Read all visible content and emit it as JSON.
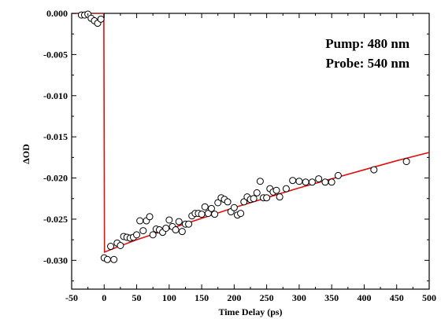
{
  "chart_data": {
    "type": "scatter",
    "title": "",
    "xlabel": "Time Delay (ps)",
    "ylabel": "ΔOD",
    "xlim": [
      -50,
      500
    ],
    "ylim": [
      -0.0335,
      0.0
    ],
    "xticks": [
      -50,
      0,
      50,
      100,
      150,
      200,
      250,
      300,
      350,
      400,
      450,
      500
    ],
    "xtick_labels": [
      "-50",
      "0",
      "50",
      "100",
      "150",
      "200",
      "250",
      "300",
      "350",
      "400",
      "450",
      "500"
    ],
    "yticks": [
      0.0,
      -0.005,
      -0.01,
      -0.015,
      -0.02,
      -0.025,
      -0.03
    ],
    "ytick_labels": [
      "0.000",
      "-0.005",
      "-0.010",
      "-0.015",
      "-0.020",
      "-0.025",
      "-0.030"
    ],
    "grid": false,
    "legend": "none",
    "annotations": [
      "Pump: 480 nm",
      "Probe: 540 nm"
    ],
    "colors": {
      "fit": "#e01010",
      "points": "#000000",
      "axes": "#000000"
    },
    "series": [
      {
        "kind": "markers",
        "x": [
          -35,
          -30,
          -25,
          -20,
          -15,
          -10,
          -5,
          0,
          5,
          10,
          15,
          20,
          25,
          30,
          35,
          40,
          45,
          50,
          55,
          60,
          65,
          70,
          75,
          80,
          85,
          90,
          95,
          100,
          105,
          110,
          115,
          120,
          125,
          130,
          135,
          140,
          145,
          150,
          155,
          160,
          165,
          170,
          175,
          180,
          185,
          190,
          195,
          200,
          205,
          210,
          215,
          220,
          225,
          230,
          235,
          240,
          245,
          250,
          255,
          260,
          265,
          270,
          280,
          290,
          300,
          310,
          320,
          330,
          340,
          350,
          360,
          415,
          465
        ],
        "y": [
          -0.0002,
          -0.0002,
          -0.0001,
          -0.0006,
          -0.0009,
          -0.0012,
          -0.0007,
          -0.0297,
          -0.0299,
          -0.0283,
          -0.0299,
          -0.0279,
          -0.0282,
          -0.0271,
          -0.0272,
          -0.0273,
          -0.0272,
          -0.0269,
          -0.0252,
          -0.0264,
          -0.0252,
          -0.0247,
          -0.0269,
          -0.0262,
          -0.0263,
          -0.0266,
          -0.0261,
          -0.0251,
          -0.0259,
          -0.0263,
          -0.0253,
          -0.0265,
          -0.0256,
          -0.0256,
          -0.0246,
          -0.0243,
          -0.0243,
          -0.0244,
          -0.0235,
          -0.0243,
          -0.0237,
          -0.0244,
          -0.023,
          -0.0224,
          -0.0226,
          -0.0229,
          -0.0241,
          -0.0236,
          -0.0245,
          -0.0243,
          -0.0229,
          -0.0223,
          -0.0226,
          -0.0225,
          -0.0218,
          -0.0204,
          -0.0224,
          -0.0224,
          -0.0213,
          -0.0217,
          -0.0215,
          -0.0223,
          -0.0213,
          -0.0203,
          -0.0204,
          -0.0205,
          -0.0205,
          -0.0201,
          -0.0205,
          -0.0205,
          -0.0197,
          -0.019,
          -0.018
        ]
      },
      {
        "kind": "fit-line",
        "x": [
          -50,
          -0.5,
          0.5,
          20,
          50,
          100,
          150,
          200,
          250,
          300,
          350,
          400,
          450,
          500
        ],
        "y": [
          0.0,
          0.0,
          -0.029,
          -0.0284,
          -0.0275,
          -0.0262,
          -0.0249,
          -0.0236,
          -0.0224,
          -0.0212,
          -0.0201,
          -0.019,
          -0.0179,
          -0.0169
        ]
      }
    ]
  }
}
